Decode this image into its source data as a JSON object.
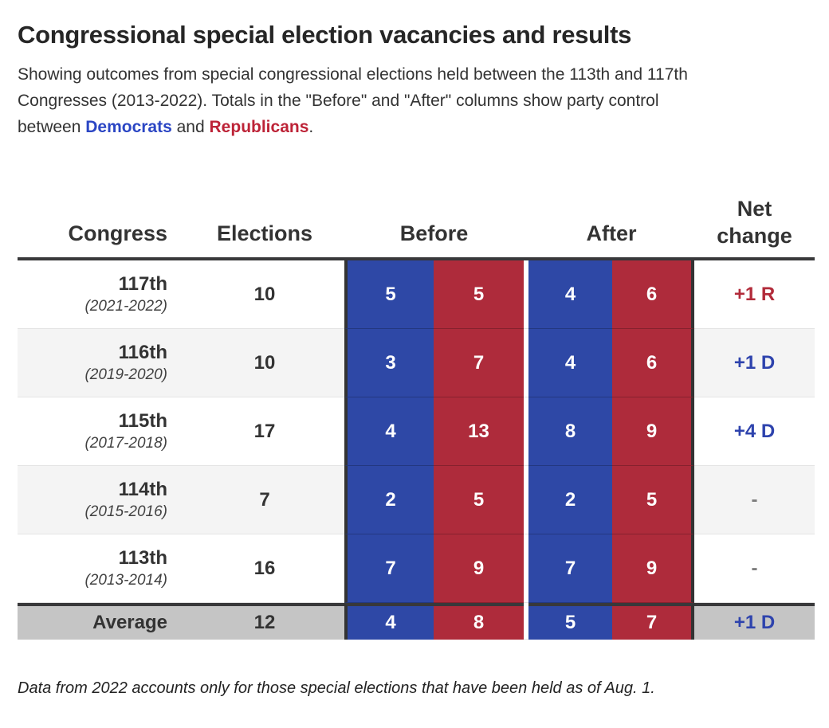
{
  "page": {
    "title": "Congressional special election vacancies and results",
    "subtitle_lines": [
      "Showing outcomes from special congressional elections held between the 113th and 117th",
      "Congresses (2013-2022). Totals in the \"Before\" and \"After\" columns show party control"
    ],
    "subtitle_line3_prefix": "between ",
    "democrats_label": "Democrats",
    "and_label": " and ",
    "republicans_label": "Republicans",
    "line3_period": ".",
    "footnote": "Data from 2022 accounts only for those special elections that have been held as of Aug. 1."
  },
  "table": {
    "headers": {
      "congress": "Congress",
      "elections": "Elections",
      "before": "Before",
      "after": "After",
      "net_line1": "Net",
      "net_line2": "change"
    },
    "rows": [
      {
        "congress": "117th",
        "years": "(2021-2022)",
        "elections": "10",
        "before_d": "5",
        "before_r": "5",
        "after_d": "4",
        "after_r": "6",
        "net": "+1 R",
        "net_party": "R"
      },
      {
        "congress": "116th",
        "years": "(2019-2020)",
        "elections": "10",
        "before_d": "3",
        "before_r": "7",
        "after_d": "4",
        "after_r": "6",
        "net": "+1 D",
        "net_party": "D"
      },
      {
        "congress": "115th",
        "years": "(2017-2018)",
        "elections": "17",
        "before_d": "4",
        "before_r": "13",
        "after_d": "8",
        "after_r": "9",
        "net": "+4 D",
        "net_party": "D"
      },
      {
        "congress": "114th",
        "years": "(2015-2016)",
        "elections": "7",
        "before_d": "2",
        "before_r": "5",
        "after_d": "2",
        "after_r": "5",
        "net": "-",
        "net_party": "none"
      },
      {
        "congress": "113th",
        "years": "(2013-2014)",
        "elections": "16",
        "before_d": "7",
        "before_r": "9",
        "after_d": "7",
        "after_r": "9",
        "net": "-",
        "net_party": "none"
      }
    ],
    "average_row": {
      "congress": "Average",
      "elections": "12",
      "before_d": "4",
      "before_r": "8",
      "after_d": "5",
      "after_r": "7",
      "net": "+1 D",
      "net_party": "D"
    }
  },
  "colors": {
    "dem_cell": "#2e48a6",
    "rep_cell": "#ae2b3b",
    "dem_text": "#2b46c4",
    "rep_text": "#bd2337",
    "net_dem": "#2e43ad",
    "net_rep": "#b22b3a"
  },
  "chart_data": {
    "type": "table",
    "title": "Congressional special election vacancies and results",
    "columns": [
      "Congress",
      "Elections",
      "Before (D)",
      "Before (R)",
      "After (D)",
      "After (R)",
      "Net change"
    ],
    "rows": [
      [
        "117th (2021-2022)",
        10,
        5,
        5,
        4,
        6,
        "+1 R"
      ],
      [
        "116th (2019-2020)",
        10,
        3,
        7,
        4,
        6,
        "+1 D"
      ],
      [
        "115th (2017-2018)",
        17,
        4,
        13,
        8,
        9,
        "+4 D"
      ],
      [
        "114th (2015-2016)",
        7,
        2,
        5,
        2,
        5,
        "-"
      ],
      [
        "113th (2013-2014)",
        16,
        7,
        9,
        7,
        9,
        "-"
      ],
      [
        "Average",
        12,
        4,
        8,
        5,
        7,
        "+1 D"
      ]
    ],
    "notes": "Data from 2022 accounts only for those special elections that have been held as of Aug. 1."
  }
}
